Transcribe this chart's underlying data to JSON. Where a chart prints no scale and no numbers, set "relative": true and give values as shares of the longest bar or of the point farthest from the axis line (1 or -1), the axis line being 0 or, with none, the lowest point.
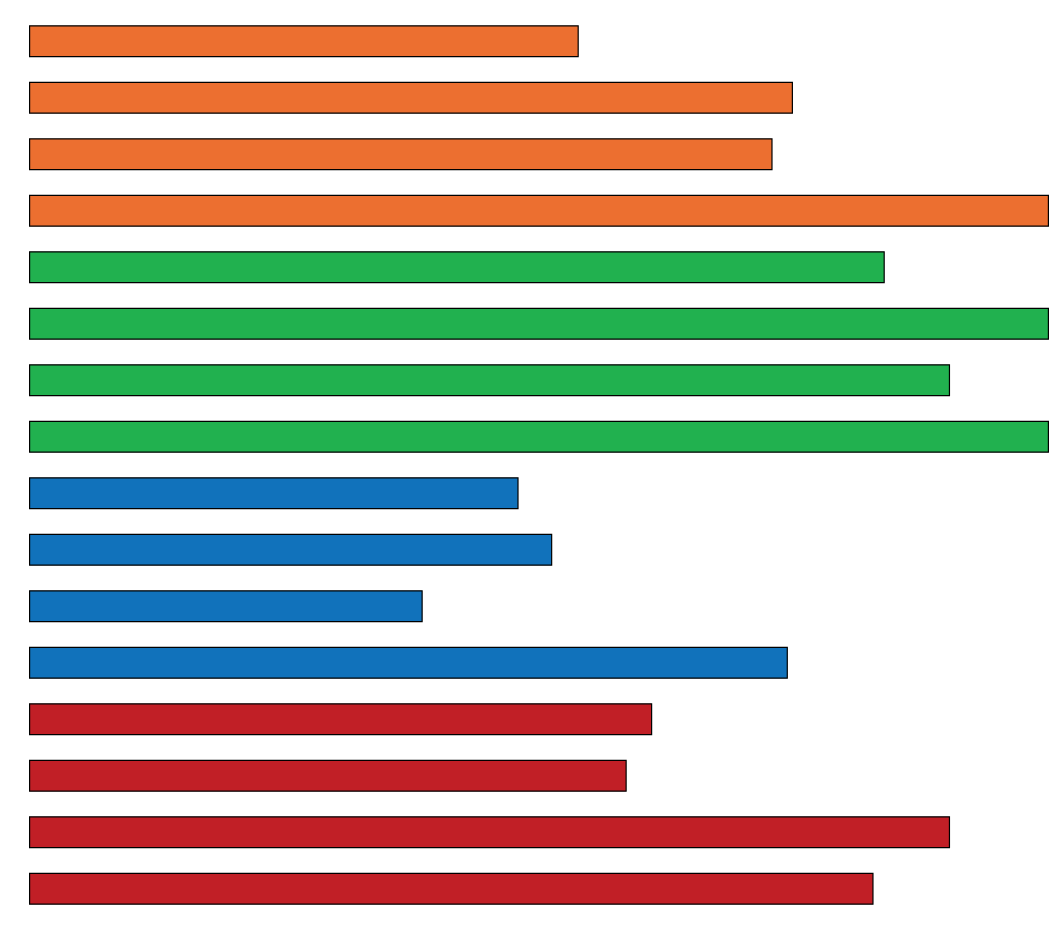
{
  "chart_data": {
    "type": "bar",
    "orientation": "horizontal",
    "relative": true,
    "categories": [
      null,
      null,
      null,
      null,
      null,
      null,
      null,
      null,
      null,
      null,
      null,
      null,
      null,
      null,
      null,
      null
    ],
    "values": [
      0.539,
      0.749,
      0.729,
      1,
      0.839,
      1,
      0.903,
      1,
      0.48,
      0.513,
      0.386,
      0.744,
      0.611,
      0.586,
      0.903,
      0.828
    ],
    "colors": [
      "#ec6f30",
      "#ec6f30",
      "#ec6f30",
      "#ec6f30",
      "#21b14f",
      "#21b14f",
      "#21b14f",
      "#21b14f",
      "#1172bb",
      "#1172bb",
      "#1172bb",
      "#1172bb",
      "#c11f26",
      "#c11f26",
      "#c11f26",
      "#c11f26"
    ]
  }
}
